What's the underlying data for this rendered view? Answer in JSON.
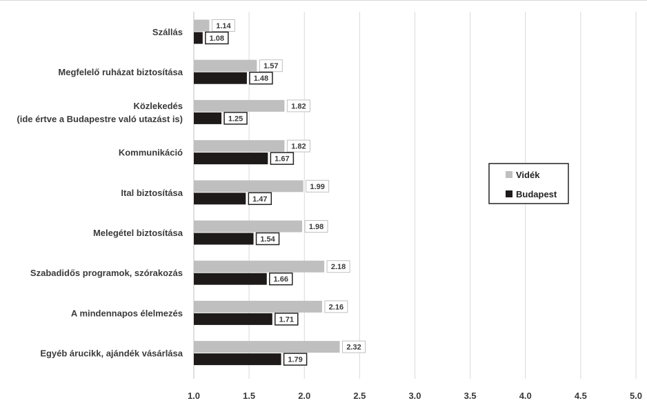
{
  "chart_data": {
    "type": "bar",
    "orientation": "horizontal",
    "title": "",
    "xlabel": "",
    "ylabel": "",
    "xlim": [
      1.0,
      5.0
    ],
    "x_ticks": [
      "1.0",
      "1.5",
      "2.0",
      "2.5",
      "3.0",
      "3.5",
      "4.0",
      "4.5",
      "5.0"
    ],
    "grid": "vertical",
    "legend_position": "right",
    "categories": [
      "Szállás",
      "Megfelelő ruházat biztosítása",
      "Közlekedés\n(ide értve a Budapestre való utazást is)",
      "Kommunikáció",
      "Ital biztosítása",
      "Melegétel biztosítása",
      "Szabadidős programok, szórakozás",
      "A mindennapos élelmezés",
      "Egyéb árucikk, ajándék vásárlása"
    ],
    "series": [
      {
        "name": "Vidék",
        "color": "#bfbfbf",
        "values": [
          1.14,
          1.57,
          1.82,
          1.82,
          1.99,
          1.98,
          2.18,
          2.16,
          2.32
        ]
      },
      {
        "name": "Budapest",
        "color": "#1e1a1a",
        "values": [
          1.08,
          1.48,
          1.25,
          1.67,
          1.47,
          1.54,
          1.66,
          1.71,
          1.79
        ]
      }
    ]
  }
}
